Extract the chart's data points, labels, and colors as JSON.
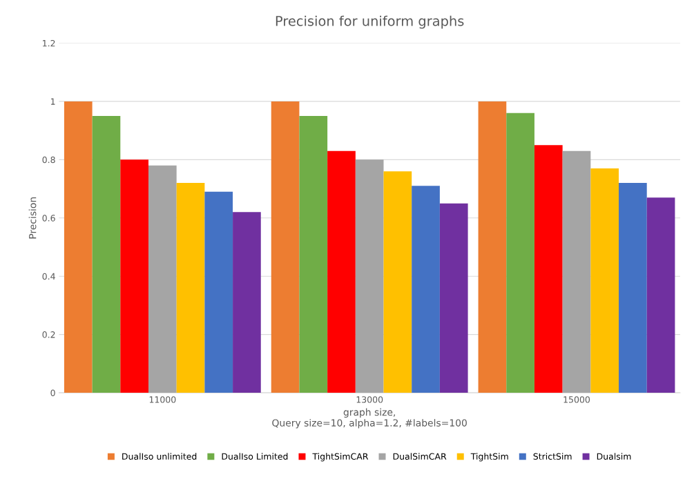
{
  "chart_data": {
    "type": "bar",
    "title": "Precision for uniform graphs",
    "xlabel": "graph size,\nQuery size=10, alpha=1.2, #labels=100",
    "ylabel": "Precision",
    "categories": [
      "11000",
      "13000",
      "15000"
    ],
    "series": [
      {
        "name": "DualIso unlimited",
        "color": "#ed7d31",
        "values": [
          1.0,
          1.0,
          1.0
        ]
      },
      {
        "name": "DualIso Limited",
        "color": "#70ad47",
        "values": [
          0.95,
          0.95,
          0.96
        ]
      },
      {
        "name": "TightSimCAR",
        "color": "#ff0000",
        "values": [
          0.8,
          0.83,
          0.85
        ]
      },
      {
        "name": "DualSimCAR",
        "color": "#a5a5a5",
        "values": [
          0.78,
          0.8,
          0.83
        ]
      },
      {
        "name": "TightSim",
        "color": "#ffc000",
        "values": [
          0.72,
          0.76,
          0.77
        ]
      },
      {
        "name": "StrictSim",
        "color": "#4472c4",
        "values": [
          0.69,
          0.71,
          0.72
        ]
      },
      {
        "name": "Dualsim",
        "color": "#7030a0",
        "values": [
          0.62,
          0.65,
          0.67
        ]
      }
    ],
    "ylim": [
      0,
      1.2
    ],
    "yticks": [
      0,
      0.2,
      0.4,
      0.6,
      0.8,
      1,
      1.2
    ],
    "grid": "y",
    "legend": "bottom"
  }
}
